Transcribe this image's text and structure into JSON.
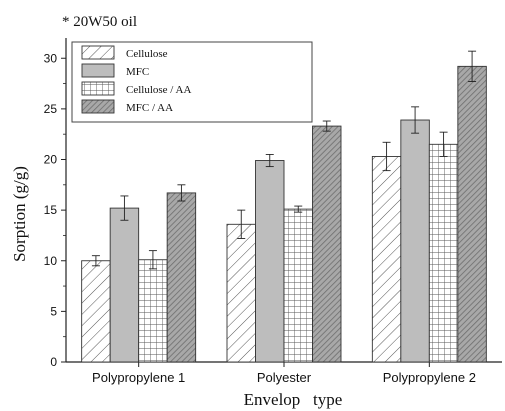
{
  "chart_data": {
    "type": "bar",
    "title": "* 20W50 oil",
    "xlabel": "Envelop   type",
    "ylabel": "Sorption (g/g)",
    "ylim": [
      0,
      32
    ],
    "yticks": [
      0,
      5,
      10,
      15,
      20,
      25,
      30
    ],
    "grid": false,
    "legend_position": "top-left",
    "categories": [
      "Polypropylene 1",
      "Polyester",
      "Polypropylene 2"
    ],
    "series": [
      {
        "name": "Cellulose",
        "pattern": "diagonal-light",
        "color": "#ffffff",
        "values": [
          10.0,
          13.6,
          20.3
        ],
        "errors": [
          0.5,
          1.4,
          1.4
        ]
      },
      {
        "name": "MFC",
        "pattern": "solid",
        "color": "#bdbdbd",
        "values": [
          15.2,
          19.9,
          23.9
        ],
        "errors": [
          1.2,
          0.6,
          1.3
        ]
      },
      {
        "name": "Cellulose / AA",
        "pattern": "grid",
        "color": "#ffffff",
        "values": [
          10.1,
          15.1,
          21.5
        ],
        "errors": [
          0.9,
          0.3,
          1.2
        ]
      },
      {
        "name": "MFC / AA",
        "pattern": "diagonal-dense",
        "color": "#9a9a9a",
        "values": [
          16.7,
          23.3,
          29.2
        ],
        "errors": [
          0.8,
          0.5,
          1.5
        ]
      }
    ]
  }
}
